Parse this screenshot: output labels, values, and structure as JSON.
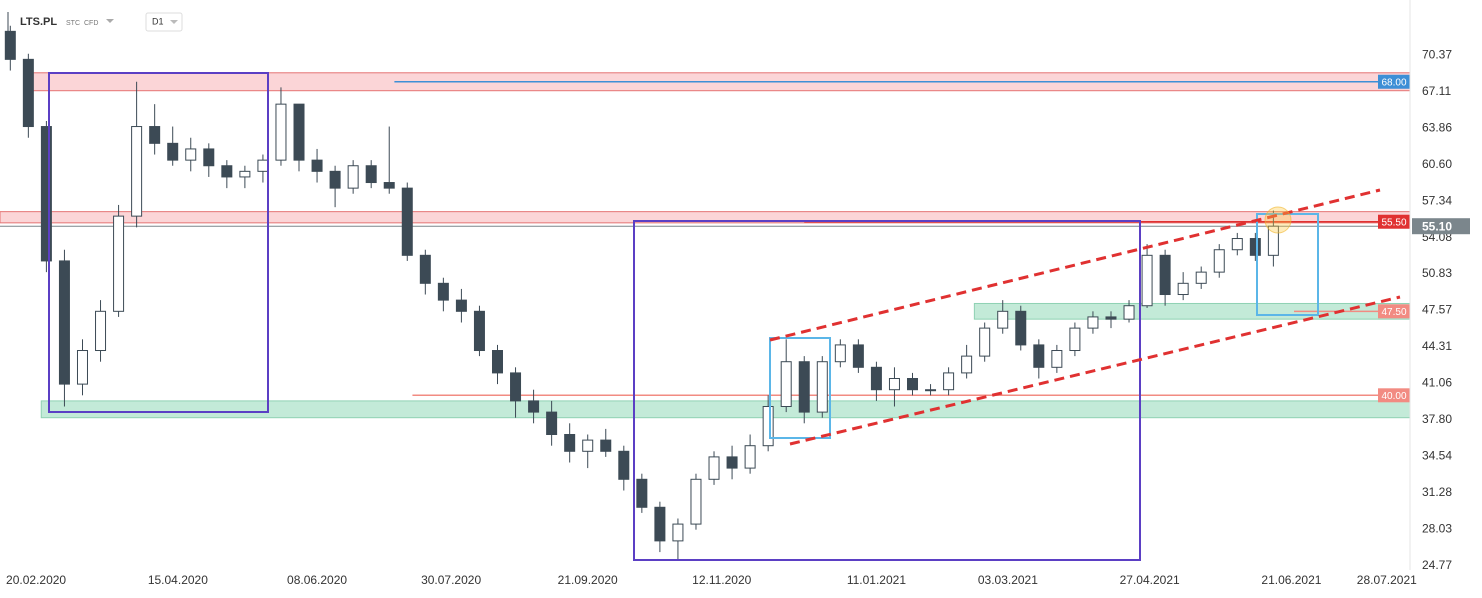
{
  "chart_data": {
    "type": "candlestick",
    "title": "LTS.PL",
    "tags": [
      "STC",
      "CFD"
    ],
    "interval": "D1",
    "candles": {
      "dates": [
        "10.02.2020",
        "17.02.2020",
        "24.02.2020",
        "02.03.2020",
        "09.03.2020",
        "16.03.2020",
        "23.03.2020",
        "30.03.2020",
        "06.04.2020",
        "13.04.2020",
        "20.04.2020",
        "27.04.2020",
        "04.05.2020",
        "11.05.2020",
        "18.05.2020",
        "25.05.2020",
        "01.06.2020",
        "08.06.2020",
        "15.06.2020",
        "22.06.2020",
        "29.06.2020",
        "06.07.2020",
        "13.07.2020",
        "20.07.2020",
        "27.07.2020",
        "03.08.2020",
        "10.08.2020",
        "17.08.2020",
        "24.08.2020",
        "31.08.2020",
        "07.09.2020",
        "14.09.2020",
        "21.09.2020",
        "28.09.2020",
        "05.10.2020",
        "12.10.2020",
        "19.10.2020",
        "26.10.2020",
        "02.11.2020",
        "09.11.2020",
        "16.11.2020",
        "23.11.2020",
        "30.11.2020",
        "07.12.2020",
        "14.12.2020",
        "21.12.2020",
        "28.12.2020",
        "04.01.2021",
        "11.01.2021",
        "18.01.2021",
        "25.01.2021",
        "01.02.2021",
        "08.02.2021",
        "15.02.2021",
        "22.02.2021",
        "01.03.2021",
        "08.03.2021",
        "15.03.2021",
        "22.03.2021",
        "29.03.2021",
        "05.04.2021",
        "12.04.2021",
        "19.04.2021",
        "26.04.2021",
        "03.05.2021",
        "10.05.2021",
        "17.05.2021",
        "24.05.2021",
        "31.05.2021",
        "07.06.2021",
        "14.06.2021"
      ],
      "open": [
        72.5,
        70,
        64,
        52,
        41,
        44,
        47.5,
        56,
        64,
        62.5,
        61,
        62,
        60.5,
        59.5,
        60,
        61,
        66,
        61,
        60,
        58.5,
        60.5,
        59,
        58.5,
        52.5,
        50,
        48.5,
        47.5,
        44,
        42,
        39.5,
        38.5,
        36.5,
        35,
        36,
        35,
        32.5,
        30,
        27,
        28.5,
        32.5,
        34.5,
        33.5,
        35.5,
        39,
        43,
        38.5,
        43,
        44.5,
        42.5,
        40.5,
        41.5,
        40.5,
        40.5,
        42,
        43.5,
        46,
        47.5,
        44.5,
        42.5,
        44,
        46,
        47,
        46.8,
        48,
        52.5,
        49,
        50,
        51,
        53,
        54,
        52.5
      ],
      "high": [
        73,
        70.5,
        64.5,
        53,
        45,
        48.5,
        57,
        68,
        66,
        64,
        63,
        62.5,
        61,
        60.5,
        61.5,
        67.5,
        66,
        62,
        60.5,
        61,
        61,
        64,
        59,
        53,
        50.5,
        49.5,
        48,
        44.5,
        42.5,
        40.5,
        39.5,
        37.5,
        36.5,
        37,
        35.5,
        33,
        30.5,
        29,
        33,
        35,
        35.5,
        36.5,
        40,
        45,
        43.5,
        43.5,
        45,
        45,
        43,
        42.5,
        42,
        41,
        42.5,
        44.5,
        46.5,
        48.5,
        48,
        45,
        44.5,
        46.5,
        47.5,
        47.5,
        48.5,
        53.5,
        53,
        51,
        51.5,
        53.5,
        54.5,
        54.5,
        56.5
      ],
      "low": [
        69,
        63,
        51,
        39,
        40,
        43,
        47,
        55,
        61.5,
        60.5,
        60,
        59.5,
        58.5,
        58.5,
        59,
        60.5,
        60,
        59,
        56.8,
        58,
        58.5,
        58,
        52,
        49,
        47.5,
        46.5,
        43.5,
        41,
        38,
        37.5,
        35.5,
        34,
        33.5,
        34.5,
        31.5,
        29.5,
        26,
        25.3,
        28,
        32,
        32.5,
        33,
        35,
        38.5,
        37.5,
        38,
        42.5,
        42,
        39.5,
        39,
        40,
        40,
        40,
        41.5,
        43,
        45.5,
        44,
        41.5,
        42,
        43.5,
        45.5,
        46,
        46.5,
        47.8,
        48,
        48.5,
        49.5,
        50.5,
        52.5,
        52,
        51.5
      ],
      "close": [
        70,
        64,
        52,
        41,
        44,
        47.5,
        56,
        64,
        62.5,
        61,
        62,
        60.5,
        59.5,
        60,
        61,
        66,
        61,
        60,
        58.5,
        60.5,
        59,
        58.5,
        52.5,
        50,
        48.5,
        47.5,
        44,
        42,
        39.5,
        38.5,
        36.5,
        35,
        36,
        35,
        32.5,
        30,
        27,
        28.5,
        32.5,
        34.5,
        33.5,
        35.5,
        39,
        43,
        38.5,
        43,
        44.5,
        42.5,
        40.5,
        41.5,
        40.5,
        40.5,
        42,
        43.5,
        46,
        47.5,
        44.5,
        42.5,
        44,
        46,
        47,
        46.8,
        48,
        52.5,
        49,
        50,
        51,
        53,
        54,
        52.5,
        55.1
      ],
      "up_color": "#ffffff",
      "down_color": "#3c4a55",
      "edge_color": "#3c4a55"
    },
    "xlim": [
      "06.02.2020",
      "06.08.2021"
    ],
    "xticks": [
      "20.02.2020",
      "15.04.2020",
      "08.06.2020",
      "30.07.2020",
      "21.09.2020",
      "12.11.2020",
      "11.01.2021",
      "03.03.2021",
      "27.04.2021",
      "21.06.2021",
      "28.07.2021"
    ],
    "ylim": [
      24.4,
      75.3
    ],
    "yticks": [
      70.37,
      67.11,
      63.86,
      {
        "value": 60.6,
        "label": "60.60"
      },
      57.34,
      54.08,
      50.83,
      47.57,
      44.31,
      41.06,
      {
        "value": 37.8,
        "label": "37.80"
      },
      34.54,
      31.28,
      28.03,
      24.77
    ],
    "grid": false,
    "zones": [
      {
        "from": 67.2,
        "to": 68.8,
        "start": "17.02.2020",
        "fill": "#fbd5d7",
        "stroke": "#e57373"
      },
      {
        "from": 55.4,
        "to": 56.4,
        "start": "06.02.2020",
        "fill": "#fbd5d7",
        "stroke": "#e57373"
      },
      {
        "from": 46.8,
        "to": 48.2,
        "start": "18.02.2021",
        "fill": "#c3ead8",
        "stroke": "#8fd1b3"
      },
      {
        "from": 38.0,
        "to": 39.5,
        "start": "22.02.2020",
        "fill": "#c3ead8",
        "stroke": "#8fd1b3"
      }
    ],
    "levels": [
      {
        "value": 68,
        "label": "68.00",
        "start": "08.07.2020",
        "color": "#3d8fd6"
      },
      {
        "value": 55.5,
        "label": "55.50",
        "start": "14.12.2020",
        "color": "#e03131"
      },
      {
        "value": 47.5,
        "label": "47.50",
        "start": "22.06.2021",
        "color": "#f28b82"
      },
      {
        "value": 40,
        "label": "40.00",
        "start": "15.07.2020",
        "color": "#f28b82"
      }
    ],
    "last_price": {
      "value": 55.1,
      "label": "55.10",
      "color": "#7b868c"
    }
  }
}
